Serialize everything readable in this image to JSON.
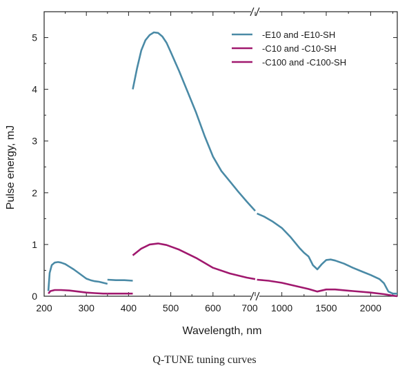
{
  "caption": "Q-TUNE tuning curves",
  "chart_data": {
    "type": "line",
    "title": "",
    "xlabel": "Wavelength, nm",
    "ylabel": "Pulse energy, mJ",
    "ylim": [
      0,
      5.5
    ],
    "yticks": [
      0,
      1,
      2,
      3,
      4,
      5
    ],
    "x_axis_broken": true,
    "x_segments": [
      {
        "range": [
          200,
          700
        ],
        "ticks": [
          200,
          300,
          400,
          500,
          600,
          700
        ]
      },
      {
        "range": [
          700,
          2300
        ],
        "ticks": [
          1000,
          1500,
          2000
        ]
      }
    ],
    "legend_position": "top-right",
    "grid": false,
    "series": [
      {
        "name": "-E10 and -E10-SH",
        "color": "#4a8aa6",
        "segments": [
          {
            "x": [
              210,
              213,
              218,
              225,
              233,
              240,
              250,
              260,
              270,
              280,
              290,
              300,
              310,
              320,
              330,
              340,
              350
            ],
            "y": [
              0.1,
              0.45,
              0.6,
              0.65,
              0.66,
              0.65,
              0.62,
              0.57,
              0.52,
              0.46,
              0.4,
              0.34,
              0.31,
              0.29,
              0.28,
              0.26,
              0.24
            ]
          },
          {
            "x": [
              350,
              370,
              390,
              410
            ],
            "y": [
              0.32,
              0.31,
              0.31,
              0.3
            ]
          },
          {
            "x": [
              410,
              420,
              430,
              440,
              450,
              460,
              470,
              480,
              490,
              500,
              520,
              540,
              560,
              580,
              600,
              620,
              640,
              660,
              680,
              700
            ],
            "y": [
              4.0,
              4.4,
              4.75,
              4.95,
              5.05,
              5.1,
              5.09,
              5.02,
              4.9,
              4.72,
              4.35,
              3.95,
              3.55,
              3.1,
              2.7,
              2.42,
              2.22,
              2.02,
              1.83,
              1.65
            ]
          },
          {
            "x": [
              720,
              800,
              900,
              1000,
              1100,
              1200,
              1250,
              1300,
              1350,
              1400,
              1450,
              1500,
              1550,
              1600,
              1700,
              1800,
              1900,
              2000,
              2100,
              2150,
              2200,
              2250,
              2300
            ],
            "y": [
              1.6,
              1.54,
              1.44,
              1.32,
              1.14,
              0.93,
              0.84,
              0.77,
              0.6,
              0.52,
              0.62,
              0.7,
              0.71,
              0.69,
              0.63,
              0.55,
              0.48,
              0.41,
              0.33,
              0.25,
              0.09,
              0.05,
              0.05
            ]
          }
        ]
      },
      {
        "name": "-C10 and -C10-SH",
        "color": "#a0186e",
        "segments": [
          {
            "x": [
              210,
              215,
              225,
              240,
              260,
              280,
              300,
              320,
              340,
              350
            ],
            "y": [
              0.05,
              0.1,
              0.12,
              0.12,
              0.11,
              0.09,
              0.07,
              0.06,
              0.05,
              0.05
            ]
          },
          {
            "x": [
              350,
              380,
              410
            ],
            "y": [
              0.05,
              0.05,
              0.05
            ]
          },
          {
            "x": [
              410,
              430,
              450,
              470,
              490,
              520,
              560,
              600,
              640,
              680,
              700
            ],
            "y": [
              0.79,
              0.92,
              1.0,
              1.02,
              0.99,
              0.9,
              0.74,
              0.55,
              0.44,
              0.36,
              0.33
            ]
          },
          {
            "x": [
              720,
              850,
              1000,
              1150,
              1300,
              1400,
              1500,
              1600,
              1800,
              2000,
              2150,
              2250,
              2300
            ],
            "y": [
              0.32,
              0.3,
              0.26,
              0.2,
              0.14,
              0.09,
              0.13,
              0.13,
              0.1,
              0.07,
              0.04,
              0.01,
              0.0
            ]
          }
        ]
      },
      {
        "name": "-C100 and -C100-SH",
        "color": "#a0186e",
        "segments": []
      }
    ]
  }
}
